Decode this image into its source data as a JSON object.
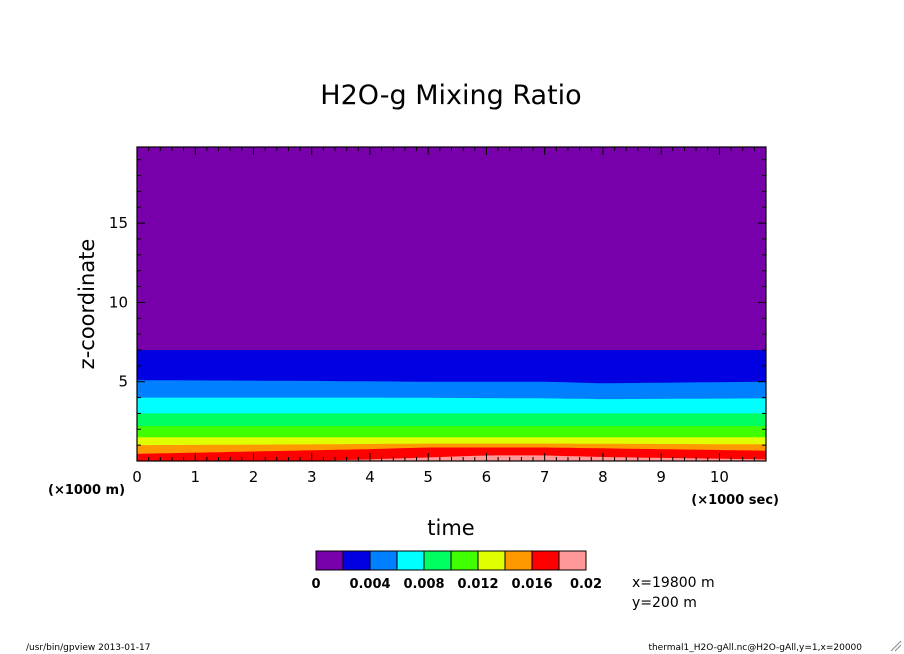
{
  "chart_data": {
    "type": "heatmap",
    "title": "H2O-g Mixing Ratio",
    "xlabel": "time",
    "ylabel": "z-coordinate",
    "x_scale_note": "(×1000 sec)",
    "y_scale_note": "(×1000 m)",
    "xlim": [
      0,
      10.8
    ],
    "ylim": [
      0,
      19.8
    ],
    "x_ticks": [
      0,
      1,
      2,
      3,
      4,
      5,
      6,
      7,
      8,
      9,
      10
    ],
    "y_ticks": [
      5,
      10,
      15
    ],
    "levels": [
      0,
      0.002,
      0.004,
      0.006,
      0.008,
      0.01,
      0.012,
      0.014,
      0.016,
      0.018,
      0.02
    ],
    "colors": [
      "#7700aa",
      "#0000e0",
      "#0080ff",
      "#00ffff",
      "#00ff60",
      "#40ff00",
      "#e0ff00",
      "#ff9900",
      "#ff0000",
      "#ff9999"
    ],
    "colorbar_labels": [
      "0",
      "0.004",
      "0.008",
      "0.012",
      "0.016",
      "0.02"
    ],
    "contours": [
      {
        "x": [
          0,
          10.8
        ],
        "z": [
          7.0,
          7.0
        ]
      },
      {
        "x": [
          0,
          3,
          5,
          7,
          8,
          10.8
        ],
        "z": [
          5.1,
          5.05,
          5.0,
          5.0,
          4.9,
          5.0
        ]
      },
      {
        "x": [
          0,
          4,
          7,
          8,
          10.8
        ],
        "z": [
          4.0,
          4.0,
          3.95,
          3.9,
          3.95
        ]
      },
      {
        "x": [
          0,
          10.8
        ],
        "z": [
          3.0,
          3.0
        ]
      },
      {
        "x": [
          0,
          10.8
        ],
        "z": [
          2.2,
          2.2
        ]
      },
      {
        "x": [
          0,
          10.8
        ],
        "z": [
          1.5,
          1.5
        ]
      },
      {
        "x": [
          0,
          3,
          5,
          7,
          10.8
        ],
        "z": [
          1.0,
          1.05,
          1.1,
          1.1,
          1.05
        ]
      },
      {
        "x": [
          0,
          2,
          4,
          5,
          7,
          10.8
        ],
        "z": [
          0.45,
          0.6,
          0.75,
          0.85,
          0.85,
          0.65
        ]
      },
      {
        "x": [
          0,
          3,
          4,
          6,
          7,
          8,
          10.8
        ],
        "z": [
          0,
          0,
          0.1,
          0.35,
          0.35,
          0.25,
          0.1
        ]
      }
    ]
  },
  "info": {
    "x_position": "x=19800 m",
    "y_position": "y=200 m"
  },
  "footer": {
    "left": "/usr/bin/gpview  2013-01-17",
    "right": "thermal1_H2O-gAll.nc@H2O-gAll,y=1,x=20000"
  }
}
